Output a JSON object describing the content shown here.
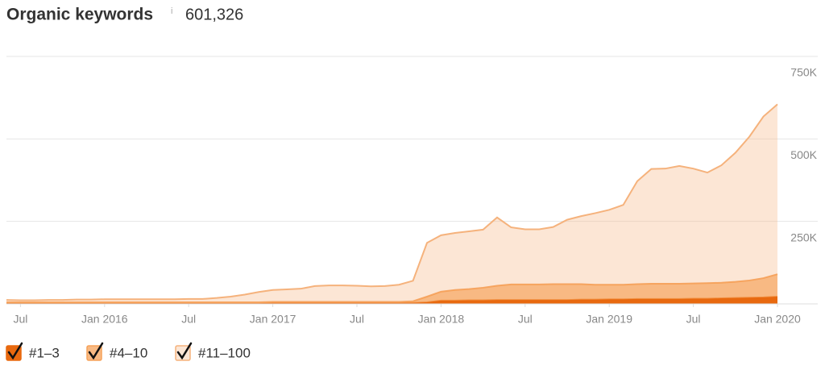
{
  "chart_data": {
    "type": "stacked-area",
    "title": "Organic keywords",
    "info_icon": "i",
    "summary": {
      "value": 601326,
      "label": "601,326"
    },
    "x": [
      "2015-06",
      "2015-07",
      "2015-08",
      "2015-09",
      "2015-10",
      "2015-11",
      "2015-12",
      "2016-01",
      "2016-02",
      "2016-03",
      "2016-04",
      "2016-05",
      "2016-06",
      "2016-07",
      "2016-08",
      "2016-09",
      "2016-10",
      "2016-11",
      "2016-12",
      "2017-01",
      "2017-02",
      "2017-03",
      "2017-04",
      "2017-05",
      "2017-06",
      "2017-07",
      "2017-08",
      "2017-09",
      "2017-10",
      "2017-11",
      "2017-12",
      "2018-01",
      "2018-02",
      "2018-03",
      "2018-04",
      "2018-05",
      "2018-06",
      "2018-07",
      "2018-08",
      "2018-09",
      "2018-10",
      "2018-11",
      "2018-12",
      "2019-01",
      "2019-02",
      "2019-03",
      "2019-04",
      "2019-05",
      "2019-06",
      "2019-07",
      "2019-08",
      "2019-09",
      "2019-10",
      "2019-11",
      "2019-12",
      "2020-01"
    ],
    "series": [
      {
        "name": "#1–3",
        "color": "#e8690f",
        "values": [
          2000,
          2000,
          2000,
          2000,
          2000,
          2000,
          2000,
          2000,
          2000,
          2000,
          2000,
          2000,
          2000,
          2000,
          2000,
          2000,
          2000,
          2000,
          2000,
          3000,
          3000,
          3000,
          3000,
          3000,
          3000,
          3000,
          3000,
          3000,
          3000,
          3000,
          5000,
          10000,
          10000,
          11000,
          11000,
          12000,
          12000,
          12000,
          12000,
          12000,
          12000,
          13000,
          13000,
          14000,
          14000,
          15000,
          15000,
          15000,
          15000,
          16000,
          16000,
          17000,
          18000,
          19000,
          20000,
          22000
        ]
      },
      {
        "name": "#4–10",
        "color": "#f6a25a",
        "values": [
          3000,
          3000,
          3000,
          3000,
          3000,
          3000,
          3000,
          3000,
          3000,
          3000,
          3000,
          3000,
          3000,
          3000,
          3000,
          3000,
          3000,
          3000,
          3000,
          3000,
          3000,
          3000,
          3000,
          3000,
          3000,
          3000,
          3000,
          3000,
          3000,
          5000,
          17000,
          27000,
          32000,
          34000,
          38000,
          43000,
          47000,
          47000,
          47000,
          48000,
          48000,
          47000,
          45000,
          44000,
          44000,
          45000,
          46000,
          46000,
          46000,
          46000,
          47000,
          47000,
          49000,
          52000,
          58000,
          68000
        ]
      },
      {
        "name": "#11–100",
        "color": "#f5b27c",
        "values": [
          7000,
          6000,
          6000,
          7000,
          7000,
          8000,
          8000,
          9000,
          9000,
          9000,
          9000,
          9000,
          9000,
          10000,
          10000,
          13000,
          17000,
          23000,
          31000,
          36000,
          38000,
          40000,
          48000,
          50000,
          50000,
          49000,
          47000,
          48000,
          52000,
          62000,
          163000,
          171000,
          173000,
          175000,
          176000,
          207000,
          173000,
          167000,
          167000,
          173000,
          195000,
          206000,
          217000,
          227000,
          242000,
          312000,
          348000,
          349000,
          357000,
          348000,
          335000,
          356000,
          391000,
          436000,
          490000,
          515000
        ]
      }
    ],
    "xlim": [
      "2015-06",
      "2020-01"
    ],
    "xticks": [
      {
        "value": "2015-07",
        "label": "Jul"
      },
      {
        "value": "2016-01",
        "label": "Jan 2016"
      },
      {
        "value": "2016-07",
        "label": "Jul"
      },
      {
        "value": "2017-01",
        "label": "Jan 2017"
      },
      {
        "value": "2017-07",
        "label": "Jul"
      },
      {
        "value": "2018-01",
        "label": "Jan 2018"
      },
      {
        "value": "2018-07",
        "label": "Jul"
      },
      {
        "value": "2019-01",
        "label": "Jan 2019"
      },
      {
        "value": "2019-07",
        "label": "Jul"
      },
      {
        "value": "2020-01",
        "label": "Jan 2020"
      }
    ],
    "ylim": [
      0,
      750000
    ],
    "yticks": [
      {
        "value": 250000,
        "label": "250K"
      },
      {
        "value": 500000,
        "label": "500K"
      },
      {
        "value": 750000,
        "label": "750K"
      }
    ],
    "grid": true
  }
}
